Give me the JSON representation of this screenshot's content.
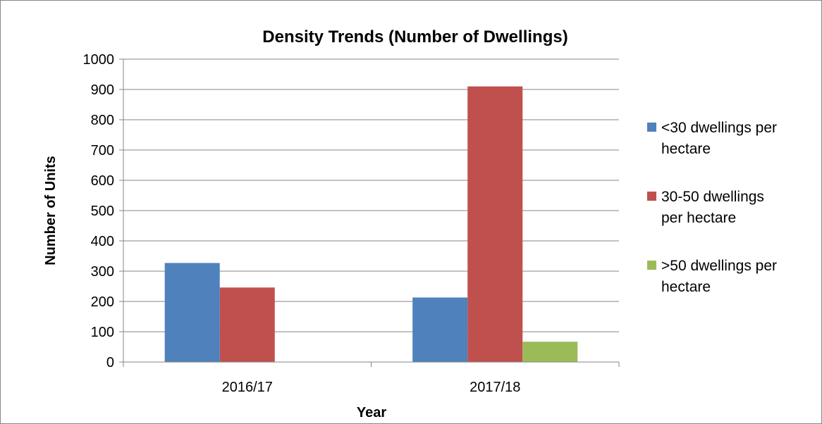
{
  "chart_data": {
    "type": "bar",
    "title": "Density Trends (Number of Dwellings)",
    "xlabel": "Year",
    "ylabel": "Number of Units",
    "categories": [
      "2016/17",
      "2017/18"
    ],
    "series": [
      {
        "name": "<30 dwellings per hectare",
        "name_lines": [
          "<30 dwellings per",
          "hectare"
        ],
        "color": "#4F81BD",
        "values": [
          327,
          213
        ]
      },
      {
        "name": "30-50 dwellings per hectare",
        "name_lines": [
          "30-50 dwellings",
          "per hectare"
        ],
        "color": "#C0504D",
        "values": [
          246,
          910
        ]
      },
      {
        "name": ">50 dwellings per hectare",
        "name_lines": [
          ">50 dwellings per",
          "hectare"
        ],
        "color": "#9BBB59",
        "values": [
          0,
          67
        ]
      }
    ],
    "ylim": [
      0,
      1000
    ],
    "yticks": [
      0,
      100,
      200,
      300,
      400,
      500,
      600,
      700,
      800,
      900,
      1000
    ],
    "ytick_labels": [
      "0",
      "100",
      "200",
      "300",
      "400",
      "500",
      "600",
      "700",
      "800",
      "900",
      "1000"
    ],
    "grid": true,
    "legend": "right"
  }
}
